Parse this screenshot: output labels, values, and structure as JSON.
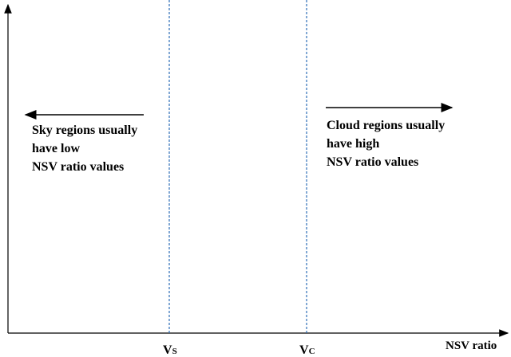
{
  "axis": {
    "x_label": "NSV ratio"
  },
  "thresholds": [
    {
      "symbol": "V",
      "subscript": "S"
    },
    {
      "symbol": "V",
      "subscript": "C"
    }
  ],
  "left_note": {
    "lines": [
      "Sky regions usually",
      "have low",
      "NSV ratio values"
    ]
  },
  "right_note": {
    "lines": [
      "Cloud regions usually",
      "have high",
      "NSV ratio values"
    ]
  }
}
